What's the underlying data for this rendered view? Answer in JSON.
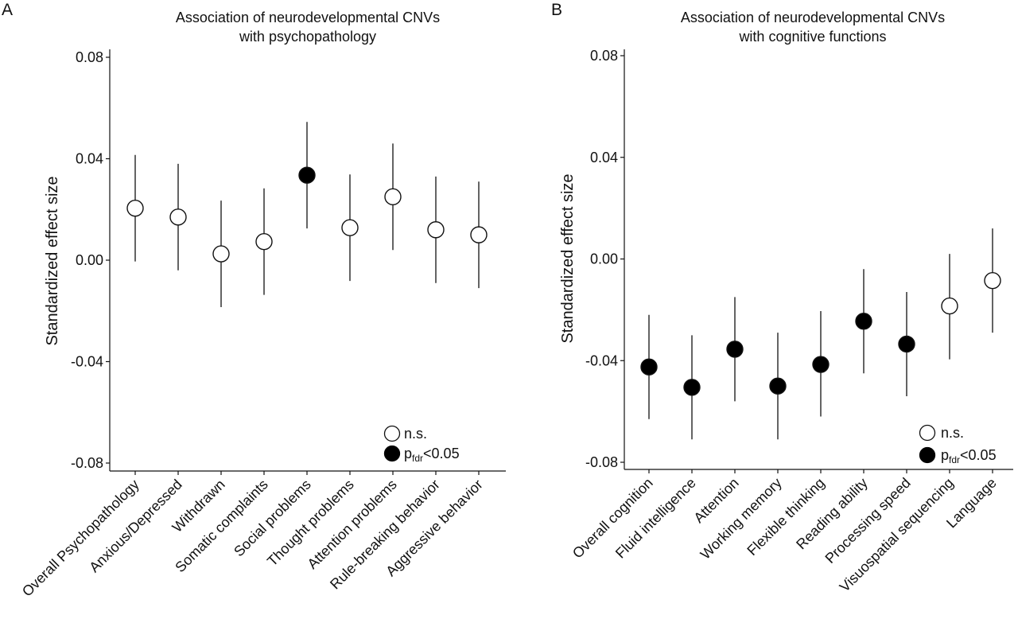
{
  "chart_data": [
    {
      "type": "scatter",
      "panel": "A",
      "title_lines": [
        "Association of neurodevelopmental CNVs",
        "with psychopathology"
      ],
      "ylabel": "Standardized effect size",
      "ylim": [
        -0.084,
        0.082
      ],
      "yticks": [
        0.08,
        0.04,
        0.0,
        -0.04,
        -0.08
      ],
      "ytick_labels": [
        "0.08",
        "0.04",
        "0.00",
        "-0.04",
        "-0.08"
      ],
      "categories": [
        "Overall Psychopathology",
        "Anxious/Depressed",
        "Withdrawn",
        "Somatic complaints",
        "Social problems",
        "Thought problems",
        "Attention problems",
        "Rule-breaking behavior",
        "Aggressive behavior"
      ],
      "values": [
        0.0205,
        0.017,
        0.0025,
        0.0073,
        0.0335,
        0.0128,
        0.025,
        0.012,
        0.01
      ],
      "ci_low": [
        -0.0005,
        -0.004,
        -0.0185,
        -0.0137,
        0.0125,
        -0.0082,
        0.004,
        -0.009,
        -0.011
      ],
      "ci_high": [
        0.0415,
        0.038,
        0.0235,
        0.0283,
        0.0545,
        0.0338,
        0.046,
        0.033,
        0.031
      ],
      "significant": [
        false,
        false,
        false,
        false,
        true,
        false,
        false,
        false,
        false
      ],
      "grid": false,
      "legend_position": "bottom-right",
      "legend": {
        "ns_label": "n.s.",
        "sig_main": "p",
        "sig_sub": "fdr",
        "sig_rest": "<0.05"
      }
    },
    {
      "type": "scatter",
      "panel": "B",
      "title_lines": [
        "Association of neurodevelopmental CNVs",
        "with cognitive functions"
      ],
      "ylabel": "Standardized effect size",
      "ylim": [
        -0.083,
        0.082
      ],
      "yticks": [
        0.08,
        0.04,
        0.0,
        -0.04,
        -0.08
      ],
      "ytick_labels": [
        "0.08",
        "0.04",
        "0.00",
        "-0.04",
        "-0.08"
      ],
      "categories": [
        "Overall cognition",
        "Fluid intelligence",
        "Attention",
        "Working memory",
        "Flexible thinking",
        "Reading ability",
        "Processing speed",
        "Visuospatial sequencing",
        "Language"
      ],
      "values": [
        -0.0425,
        -0.0505,
        -0.0355,
        -0.05,
        -0.0415,
        -0.0245,
        -0.0335,
        -0.0185,
        -0.0085
      ],
      "ci_low": [
        -0.063,
        -0.071,
        -0.056,
        -0.071,
        -0.062,
        -0.045,
        -0.054,
        -0.0395,
        -0.029
      ],
      "ci_high": [
        -0.022,
        -0.03,
        -0.015,
        -0.029,
        -0.0205,
        -0.004,
        -0.013,
        0.002,
        0.012
      ],
      "significant": [
        true,
        true,
        true,
        true,
        true,
        true,
        true,
        false,
        false
      ],
      "grid": false,
      "legend_position": "bottom-right",
      "legend": {
        "ns_label": "n.s.",
        "sig_main": "p",
        "sig_sub": "fdr",
        "sig_rest": "<0.05"
      }
    }
  ]
}
